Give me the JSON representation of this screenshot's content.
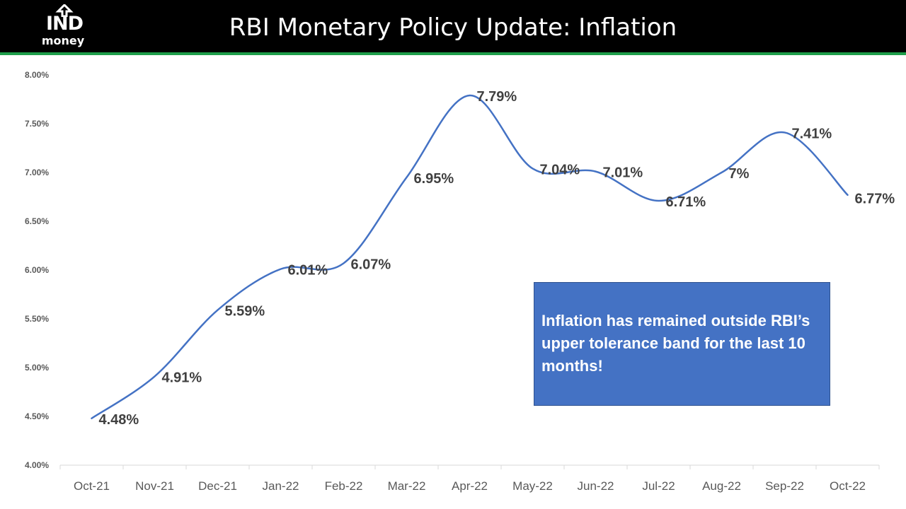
{
  "header": {
    "title": "RBI Monetary Policy Update: Inflation",
    "logo_word": "IND",
    "logo_sub": "money"
  },
  "colors": {
    "header_bg": "#000000",
    "accent_green": "#1e9e4a",
    "line": "#4472c4",
    "callout_bg": "#4472c4",
    "axis_text": "#595959",
    "label_text": "#404040"
  },
  "callout": {
    "text": "Inflation has remained outside RBI’s upper tolerance band for the last 10 months!"
  },
  "chart_data": {
    "type": "line",
    "categories": [
      "Oct-21",
      "Nov-21",
      "Dec-21",
      "Jan-22",
      "Feb-22",
      "Mar-22",
      "Apr-22",
      "May-22",
      "Jun-22",
      "Jul-22",
      "Aug-22",
      "Sep-22",
      "Oct-22"
    ],
    "values": [
      4.48,
      4.91,
      5.59,
      6.01,
      6.07,
      6.95,
      7.79,
      7.04,
      7.01,
      6.71,
      7.0,
      7.41,
      6.77
    ],
    "data_labels": [
      "4.48%",
      "4.91%",
      "5.59%",
      "6.01%",
      "6.07%",
      "6.95%",
      "7.79%",
      "7.04%",
      "7.01%",
      "6.71%",
      "7%",
      "7.41%",
      "6.77%"
    ],
    "y_ticks": [
      "4.00%",
      "4.50%",
      "5.00%",
      "5.50%",
      "6.00%",
      "6.50%",
      "7.00%",
      "7.50%",
      "8.00%"
    ],
    "ylim": [
      4.0,
      8.0
    ],
    "y_tick_values": [
      4.0,
      4.5,
      5.0,
      5.5,
      6.0,
      6.5,
      7.0,
      7.5,
      8.0
    ],
    "grid": false,
    "legend": "none",
    "smooth": true
  }
}
